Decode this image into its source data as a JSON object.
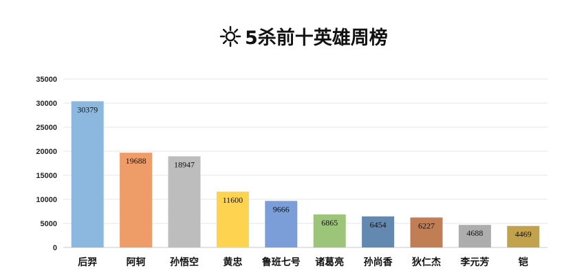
{
  "chart_data": {
    "type": "bar",
    "title": "5杀前十英雄周榜",
    "title_icon": "sun-icon",
    "categories": [
      "后羿",
      "阿轲",
      "孙悟空",
      "黄忠",
      "鲁班七号",
      "诸葛亮",
      "孙尚香",
      "狄仁杰",
      "李元芳",
      "铠"
    ],
    "values": [
      30379,
      19688,
      18947,
      11600,
      9666,
      6865,
      6454,
      6227,
      4688,
      4469
    ],
    "data_labels": [
      "30379",
      "19688",
      "18947",
      "11600",
      "9666",
      "6865",
      "6454",
      "6227",
      "4688",
      "4469"
    ],
    "colors": [
      "#8cb8e0",
      "#ee9d69",
      "#bdbdbd",
      "#fed350",
      "#7b9dd8",
      "#9dc57a",
      "#6389b0",
      "#c17e54",
      "#adadad",
      "#c3a24e"
    ],
    "ylim": [
      0,
      35000
    ],
    "yticks": [
      0,
      5000,
      10000,
      15000,
      20000,
      25000,
      30000,
      35000
    ],
    "ytick_labels": [
      "0",
      "5000",
      "10000",
      "15000",
      "20000",
      "25000",
      "30000",
      "35000"
    ],
    "xlabel": "",
    "ylabel": "",
    "grid": true,
    "legend": "none"
  }
}
